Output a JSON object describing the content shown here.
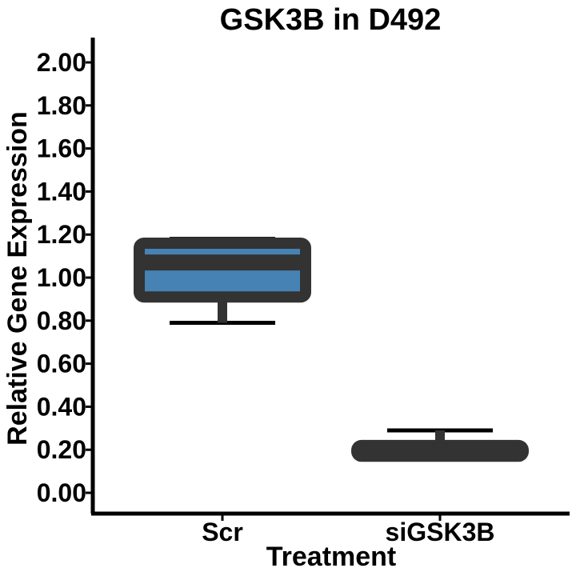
{
  "chart_data": {
    "type": "box",
    "title": "GSK3B in D492",
    "xlabel": "Treatment",
    "ylabel": "Relative Gene Expression",
    "categories": [
      "Scr",
      "siGSK3B"
    ],
    "ylim": [
      -0.09,
      2.1
    ],
    "yticks": [
      0.0,
      0.2,
      0.4,
      0.6,
      0.8,
      1.0,
      1.2,
      1.4,
      1.6,
      1.8,
      2.0
    ],
    "ytick_labels": [
      "0.00",
      "0.20",
      "0.40",
      "0.60",
      "0.80",
      "1.00",
      "1.20",
      "1.40",
      "1.60",
      "1.80",
      "2.00"
    ],
    "boxes": [
      {
        "category": "Scr",
        "min": 0.79,
        "q1": 0.91,
        "median": 1.07,
        "q3": 1.16,
        "max": 1.18
      },
      {
        "category": "siGSK3B",
        "min": 0.17,
        "q1": 0.17,
        "median": 0.19,
        "q3": 0.22,
        "max": 0.29
      }
    ],
    "box_fill": "#4682b4",
    "box_line": "#333333",
    "whisker_color": "#000000",
    "grid": false,
    "legend": "none"
  }
}
